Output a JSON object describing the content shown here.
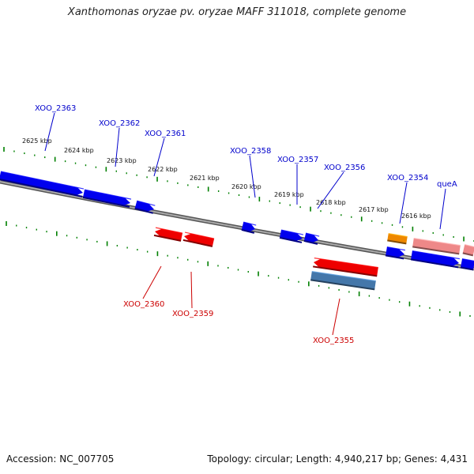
{
  "title": "Xanthomonas oryzae pv. oryzae MAFF 311018, complete genome",
  "footer": {
    "accession": "Accession: NC_007705",
    "summary": "Topology: circular; Length: 4,940,217 bp; Genes: 4,431"
  },
  "colors": {
    "forward_gene": "#0000ee",
    "reverse_gene": "#ee0000",
    "orange_gene": "#ee8800",
    "pink_gene": "#ee8888",
    "steel_gene": "#4477aa",
    "backbone": "#777777",
    "tick": "#008000",
    "forward_label": "#0000cc",
    "reverse_label": "#cc0000"
  },
  "scale_labels": [
    "2625 kbp",
    "2624 kbp",
    "2623 kbp",
    "2622 kbp",
    "2621 kbp",
    "2620 kbp",
    "2619 kbp",
    "2618 kbp",
    "2617 kbp",
    "2616 kbp"
  ],
  "gene_labels": [
    {
      "name": "XOO_2363",
      "strand": "forward"
    },
    {
      "name": "XOO_2362",
      "strand": "forward"
    },
    {
      "name": "XOO_2361",
      "strand": "forward"
    },
    {
      "name": "XOO_2358",
      "strand": "forward"
    },
    {
      "name": "XOO_2357",
      "strand": "forward"
    },
    {
      "name": "XOO_2356",
      "strand": "forward"
    },
    {
      "name": "XOO_2354",
      "strand": "forward"
    },
    {
      "name": "queA",
      "strand": "forward"
    },
    {
      "name": "XOO_2360",
      "strand": "reverse"
    },
    {
      "name": "XOO_2359",
      "strand": "reverse"
    },
    {
      "name": "XOO_2355",
      "strand": "reverse"
    }
  ]
}
